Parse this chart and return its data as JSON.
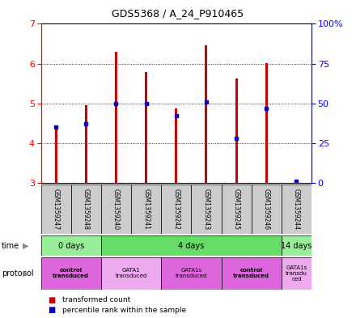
{
  "title": "GDS5368 / A_24_P910465",
  "samples": [
    "GSM1359247",
    "GSM1359248",
    "GSM1359240",
    "GSM1359241",
    "GSM1359242",
    "GSM1359243",
    "GSM1359245",
    "GSM1359246",
    "GSM1359244"
  ],
  "bar_heights": [
    4.35,
    4.95,
    6.3,
    5.78,
    4.87,
    6.45,
    5.62,
    6.02,
    3.05
  ],
  "bar_base": 3.0,
  "percentile_values": [
    35,
    37,
    50,
    50,
    42,
    51,
    28,
    47,
    1
  ],
  "left_ylim": [
    3,
    7
  ],
  "right_ylim": [
    0,
    100
  ],
  "left_yticks": [
    3,
    4,
    5,
    6,
    7
  ],
  "right_yticks": [
    0,
    25,
    50,
    75,
    100
  ],
  "right_yticklabels": [
    "0",
    "25",
    "50",
    "75",
    "100%"
  ],
  "bar_color": "#cc0000",
  "percentile_color": "#0000cc",
  "bar_width": 0.08,
  "time_groups": [
    {
      "label": "0 days",
      "start": 0,
      "end": 2,
      "color": "#99ee99"
    },
    {
      "label": "4 days",
      "start": 2,
      "end": 8,
      "color": "#66dd66"
    },
    {
      "label": "14 days",
      "start": 8,
      "end": 9,
      "color": "#99ee99"
    }
  ],
  "protocol_groups": [
    {
      "label": "control\ntransduced",
      "start": 0,
      "end": 2,
      "color": "#dd66dd",
      "bold": true
    },
    {
      "label": "GATA1\ntransduced",
      "start": 2,
      "end": 4,
      "color": "#eeaaee",
      "bold": false
    },
    {
      "label": "GATA1s\ntransduced",
      "start": 4,
      "end": 6,
      "color": "#dd66dd",
      "bold": false
    },
    {
      "label": "control\ntransduced",
      "start": 6,
      "end": 8,
      "color": "#dd66dd",
      "bold": true
    },
    {
      "label": "GATA1s\ntransdu\nced",
      "start": 8,
      "end": 9,
      "color": "#eeaaee",
      "bold": false
    }
  ],
  "legend_red_label": "transformed count",
  "legend_blue_label": "percentile rank within the sample",
  "sample_box_color": "#cccccc",
  "grid_color": "#000000"
}
